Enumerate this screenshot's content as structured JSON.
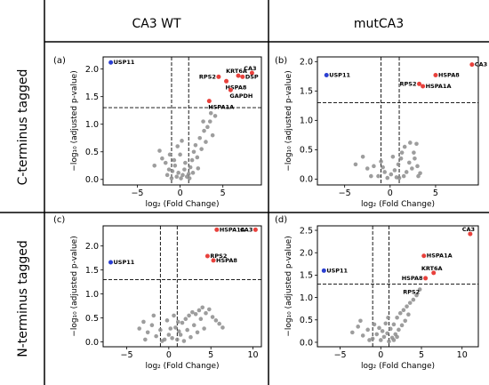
{
  "headers": {
    "columns": [
      "CA3 WT",
      "mutCA3"
    ],
    "rows": [
      "C-terminus tagged",
      "N-terminus tagged"
    ]
  },
  "colors": {
    "highlight_red": "#e8413c",
    "highlight_blue": "#2b3fd1",
    "background_points": "#8c8c8c"
  },
  "chart_data": [
    {
      "type": "scatter",
      "panel_label": "(a)",
      "xlabel": "log₂ (Fold Change)",
      "ylabel": "−log₁₀ (adjusted p-value)",
      "xlim": [
        -9,
        9.5
      ],
      "ylim": [
        -0.1,
        2.22
      ],
      "xticks": [
        -5,
        0,
        5
      ],
      "yticks": [
        0.0,
        0.5,
        1.0,
        1.5,
        2.0
      ],
      "ytick_format": 1,
      "hlines": [
        1.3
      ],
      "vlines": [
        -1,
        1
      ],
      "highlighted": [
        {
          "label": "USP11",
          "x": -8.1,
          "y": 2.12,
          "color": "blue",
          "label_pos": "right"
        },
        {
          "label": "CA3",
          "x": 8.4,
          "y": 1.93,
          "color": "red",
          "label_pos": "above"
        },
        {
          "label": "KRT6A",
          "x": 6.8,
          "y": 1.88,
          "color": "red",
          "label_pos": "above"
        },
        {
          "label": "DSP",
          "x": 7.3,
          "y": 1.86,
          "color": "red",
          "label_pos": "right"
        },
        {
          "label": "RPS2",
          "x": 4.5,
          "y": 1.86,
          "color": "red",
          "label_pos": "left"
        },
        {
          "label": "HSPA8",
          "x": 5.4,
          "y": 1.78,
          "color": "red",
          "label_pos": "below"
        },
        {
          "label": "GAPDH",
          "x": 5.9,
          "y": 1.62,
          "color": "red",
          "label_pos": "below"
        },
        {
          "label": "HSPA1A",
          "x": 3.4,
          "y": 1.42,
          "color": "red",
          "label_pos": "below"
        }
      ],
      "background_points": [
        [
          -2.4,
          0.52
        ],
        [
          -2.1,
          0.38
        ],
        [
          -1.7,
          0.3
        ],
        [
          -1.2,
          0.45
        ],
        [
          -0.9,
          0.15
        ],
        [
          -0.6,
          0.25
        ],
        [
          -0.4,
          0.05
        ],
        [
          -0.2,
          0.12
        ],
        [
          0.1,
          0.02
        ],
        [
          0.3,
          0.08
        ],
        [
          0.5,
          0.18
        ],
        [
          0.8,
          0.05
        ],
        [
          1.0,
          0.1
        ],
        [
          1.2,
          0.22
        ],
        [
          1.4,
          0.35
        ],
        [
          1.6,
          0.5
        ],
        [
          1.8,
          0.62
        ],
        [
          2.0,
          0.4
        ],
        [
          2.3,
          0.75
        ],
        [
          2.5,
          0.55
        ],
        [
          2.8,
          0.88
        ],
        [
          3.0,
          0.68
        ],
        [
          3.2,
          0.95
        ],
        [
          3.5,
          1.05
        ],
        [
          3.8,
          0.8
        ],
        [
          4.1,
          1.15
        ],
        [
          -1.5,
          0.08
        ],
        [
          -1.0,
          0.02
        ],
        [
          -0.7,
          0.35
        ],
        [
          0.0,
          0.45
        ],
        [
          0.6,
          0.3
        ],
        [
          1.1,
          0.02
        ],
        [
          1.5,
          0.12
        ],
        [
          2.1,
          0.2
        ],
        [
          -3.0,
          0.25
        ],
        [
          -0.3,
          0.6
        ],
        [
          0.2,
          0.7
        ],
        [
          2.7,
          1.05
        ],
        [
          3.6,
          1.2
        ],
        [
          -1.3,
          0.18
        ]
      ]
    },
    {
      "type": "scatter",
      "panel_label": "(b)",
      "xlabel": "log₂ (Fold Change)",
      "ylabel": "−log₁₀ (adjusted p-value)",
      "xlim": [
        -8,
        9.7
      ],
      "ylim": [
        -0.1,
        2.08
      ],
      "xticks": [
        -5,
        0,
        5
      ],
      "yticks": [
        0.0,
        0.5,
        1.0,
        1.5,
        2.0
      ],
      "ytick_format": 1,
      "hlines": [
        1.3
      ],
      "vlines": [
        -1,
        1
      ],
      "highlighted": [
        {
          "label": "USP11",
          "x": -7.0,
          "y": 1.77,
          "color": "blue",
          "label_pos": "right"
        },
        {
          "label": "CA3",
          "x": 9.0,
          "y": 1.95,
          "color": "red",
          "label_pos": "right"
        },
        {
          "label": "HSPA8",
          "x": 5.0,
          "y": 1.77,
          "color": "red",
          "label_pos": "right"
        },
        {
          "label": "RPS2",
          "x": 3.2,
          "y": 1.62,
          "color": "red",
          "label_pos": "left"
        },
        {
          "label": "HSPA1A",
          "x": 3.6,
          "y": 1.58,
          "color": "red",
          "label_pos": "right"
        }
      ],
      "background_points": [
        [
          -3.8,
          0.25
        ],
        [
          -3.0,
          0.38
        ],
        [
          -2.5,
          0.18
        ],
        [
          -1.8,
          0.22
        ],
        [
          -1.3,
          0.05
        ],
        [
          -1.0,
          0.3
        ],
        [
          -0.6,
          0.12
        ],
        [
          -0.3,
          0.02
        ],
        [
          0.1,
          0.08
        ],
        [
          0.5,
          0.15
        ],
        [
          0.9,
          0.25
        ],
        [
          1.2,
          0.35
        ],
        [
          1.5,
          0.05
        ],
        [
          1.8,
          0.12
        ],
        [
          2.1,
          0.28
        ],
        [
          2.4,
          0.18
        ],
        [
          2.7,
          0.35
        ],
        [
          3.0,
          0.22
        ],
        [
          3.3,
          0.1
        ],
        [
          1.6,
          0.55
        ],
        [
          2.2,
          0.62
        ],
        [
          2.6,
          0.45
        ],
        [
          0.3,
          0.38
        ],
        [
          -0.8,
          0.2
        ],
        [
          1.0,
          0.02
        ],
        [
          3.1,
          0.05
        ],
        [
          -2.1,
          0.05
        ],
        [
          0.7,
          0.03
        ],
        [
          2.9,
          0.6
        ],
        [
          1.3,
          0.45
        ]
      ]
    },
    {
      "type": "scatter",
      "panel_label": "(c)",
      "xlabel": "log₂ (Fold Change)",
      "ylabel": "−log₁₀ (adjusted p-value)",
      "xlim": [
        -7.8,
        11
      ],
      "ylim": [
        -0.1,
        2.42
      ],
      "xticks": [
        -5,
        0,
        5,
        10
      ],
      "yticks": [
        0.0,
        0.5,
        1.0,
        1.5,
        2.0
      ],
      "ytick_format": 1,
      "hlines": [
        1.3
      ],
      "vlines": [
        -1,
        1
      ],
      "highlighted": [
        {
          "label": "USP11",
          "x": -6.9,
          "y": 1.66,
          "color": "blue",
          "label_pos": "right"
        },
        {
          "label": "HSPA1A",
          "x": 5.7,
          "y": 2.34,
          "color": "red",
          "label_pos": "right"
        },
        {
          "label": "CA3",
          "x": 10.3,
          "y": 2.34,
          "color": "red",
          "label_pos": "left"
        },
        {
          "label": "RPS2",
          "x": 4.6,
          "y": 1.79,
          "color": "red",
          "label_pos": "right"
        },
        {
          "label": "HSPA8",
          "x": 5.3,
          "y": 1.7,
          "color": "red",
          "label_pos": "right"
        }
      ],
      "background_points": [
        [
          -3.5,
          0.28
        ],
        [
          -3.0,
          0.42
        ],
        [
          -2.5,
          0.2
        ],
        [
          -2.0,
          0.35
        ],
        [
          -1.5,
          0.12
        ],
        [
          -1.0,
          0.25
        ],
        [
          -0.5,
          0.05
        ],
        [
          0.0,
          0.15
        ],
        [
          0.4,
          0.08
        ],
        [
          0.8,
          0.3
        ],
        [
          1.2,
          0.22
        ],
        [
          1.6,
          0.4
        ],
        [
          2.0,
          0.48
        ],
        [
          2.4,
          0.55
        ],
        [
          2.8,
          0.62
        ],
        [
          3.2,
          0.58
        ],
        [
          3.6,
          0.66
        ],
        [
          4.0,
          0.72
        ],
        [
          4.4,
          0.6
        ],
        [
          4.8,
          0.68
        ],
        [
          5.2,
          0.52
        ],
        [
          5.6,
          0.45
        ],
        [
          6.0,
          0.38
        ],
        [
          6.4,
          0.3
        ],
        [
          1.0,
          0.05
        ],
        [
          1.4,
          0.15
        ],
        [
          2.2,
          0.25
        ],
        [
          3.0,
          0.35
        ],
        [
          -0.2,
          0.45
        ],
        [
          0.6,
          0.55
        ],
        [
          1.8,
          0.02
        ],
        [
          2.6,
          0.1
        ],
        [
          3.4,
          0.2
        ],
        [
          4.2,
          0.28
        ],
        [
          -1.8,
          0.55
        ],
        [
          -2.8,
          0.05
        ],
        [
          0.2,
          0.28
        ],
        [
          1.1,
          0.42
        ],
        [
          -0.8,
          0.02
        ],
        [
          3.8,
          0.48
        ]
      ]
    },
    {
      "type": "scatter",
      "panel_label": "(d)",
      "xlabel": "log₂ (Fold Change)",
      "ylabel": "−log₁₀ (adjusted p-value)",
      "xlim": [
        -7.8,
        12
      ],
      "ylim": [
        -0.1,
        2.6
      ],
      "xticks": [
        -5,
        0,
        5,
        10
      ],
      "yticks": [
        0.0,
        0.5,
        1.0,
        1.5,
        2.0,
        2.5
      ],
      "ytick_format": 1,
      "hlines": [
        1.3
      ],
      "vlines": [
        -1,
        1
      ],
      "highlighted": [
        {
          "label": "USP11",
          "x": -7.0,
          "y": 1.6,
          "color": "blue",
          "label_pos": "right"
        },
        {
          "label": "CA3",
          "x": 11.0,
          "y": 2.42,
          "color": "red",
          "label_pos": "above"
        },
        {
          "label": "HSPA1A",
          "x": 5.3,
          "y": 1.93,
          "color": "red",
          "label_pos": "right"
        },
        {
          "label": "KRT6A",
          "x": 6.5,
          "y": 1.55,
          "color": "red",
          "label_pos": "above"
        },
        {
          "label": "HSPA8",
          "x": 5.5,
          "y": 1.43,
          "color": "red",
          "label_pos": "left"
        },
        {
          "label": "RPS2",
          "x": 2.4,
          "y": 1.12,
          "color": "none",
          "label_pos": "right"
        }
      ],
      "background_points": [
        [
          -3.5,
          0.22
        ],
        [
          -2.8,
          0.35
        ],
        [
          -2.2,
          0.15
        ],
        [
          -1.6,
          0.28
        ],
        [
          -1.0,
          0.08
        ],
        [
          -0.5,
          0.18
        ],
        [
          0.0,
          0.05
        ],
        [
          0.4,
          0.12
        ],
        [
          0.8,
          0.2
        ],
        [
          1.2,
          0.3
        ],
        [
          1.6,
          0.4
        ],
        [
          2.0,
          0.55
        ],
        [
          2.4,
          0.65
        ],
        [
          2.8,
          0.72
        ],
        [
          3.2,
          0.8
        ],
        [
          3.6,
          0.88
        ],
        [
          4.0,
          0.95
        ],
        [
          4.4,
          1.05
        ],
        [
          1.0,
          0.02
        ],
        [
          1.4,
          0.1
        ],
        [
          1.8,
          0.18
        ],
        [
          2.2,
          0.28
        ],
        [
          2.6,
          0.38
        ],
        [
          3.0,
          0.48
        ],
        [
          -0.2,
          0.32
        ],
        [
          0.6,
          0.42
        ],
        [
          -1.4,
          0.05
        ],
        [
          0.2,
          0.25
        ],
        [
          -2.5,
          0.48
        ],
        [
          3.4,
          0.62
        ],
        [
          4.8,
          1.18
        ],
        [
          1.6,
          0.05
        ],
        [
          0.9,
          0.55
        ],
        [
          -0.8,
          0.4
        ],
        [
          2.0,
          0.12
        ]
      ]
    }
  ]
}
